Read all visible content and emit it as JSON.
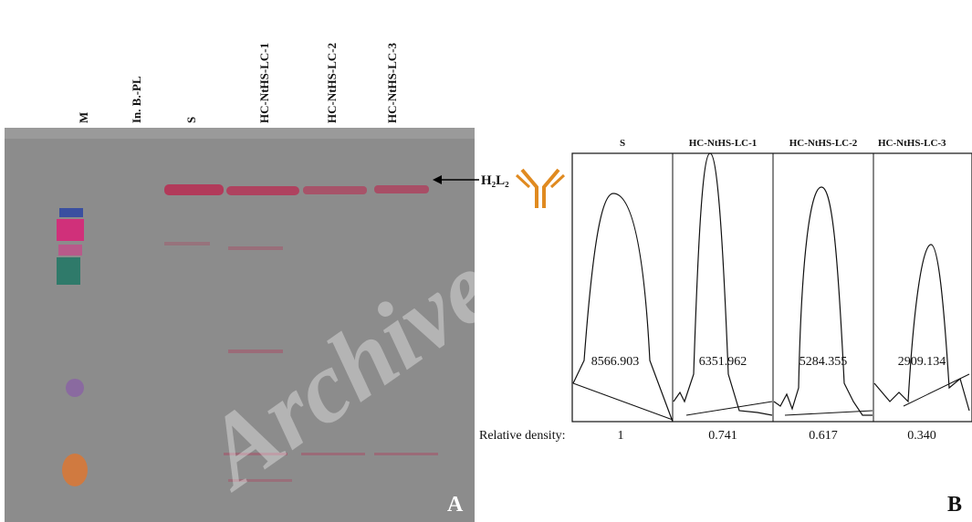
{
  "lanes": [
    "M",
    "In. B.-PL",
    "S",
    "HC-NtHS-LC-1",
    "HC-NtHS-LC-2",
    "HC-NtHS-LC-3"
  ],
  "arrow_label": "H₂L₂",
  "panel_a_label": "A",
  "watermark": "Archive",
  "panel_b": {
    "headers": [
      "S",
      "HC-NtHS-LC-1",
      "HC-NtHS-LC-2",
      "HC-NtHS-LC-3"
    ],
    "peak_areas": [
      "8566.903",
      "6351.962",
      "5284.355",
      "2909.134"
    ],
    "relative_density_label": "Relative density:",
    "relative_densities": [
      "1",
      "0.741",
      "0.617",
      "0.340"
    ]
  },
  "panel_b_label": "B"
}
